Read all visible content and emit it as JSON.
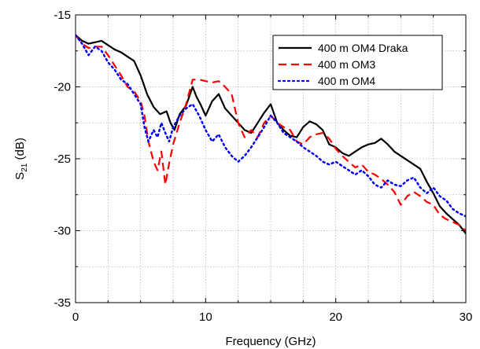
{
  "chart_data": {
    "type": "line",
    "title": "",
    "xlabel": "Frequency (GHz)",
    "ylabel": {
      "main": "S",
      "sub": "21",
      "rest": " (dB)"
    },
    "xlim": [
      0,
      30
    ],
    "ylim": [
      -35,
      -15
    ],
    "xticks": [
      0,
      10,
      20,
      30
    ],
    "yticks": [
      -35,
      -30,
      -25,
      -20,
      -15
    ],
    "grid": true,
    "legend": "top-right",
    "series": [
      {
        "name": "400 m OM4 Draka",
        "color": "#000000",
        "dash": "solid",
        "x": [
          0,
          0.5,
          1,
          1.5,
          2,
          2.5,
          3,
          3.5,
          4,
          4.5,
          5,
          5.5,
          6,
          6.5,
          7,
          7.3,
          7.6,
          8,
          8.5,
          9,
          9.3,
          9.6,
          10,
          10.5,
          11,
          11.5,
          12,
          12.5,
          13,
          13.5,
          14,
          14.5,
          15,
          15.5,
          16,
          16.5,
          17,
          17.5,
          18,
          18.5,
          19,
          19.5,
          20,
          20.5,
          21,
          21.5,
          22,
          22.5,
          23,
          23.5,
          24,
          24.5,
          25,
          25.5,
          26,
          26.5,
          27,
          27.5,
          28,
          28.5,
          29,
          29.5,
          30
        ],
        "y": [
          -16.4,
          -16.8,
          -17.0,
          -16.9,
          -16.8,
          -17.1,
          -17.4,
          -17.6,
          -17.9,
          -18.2,
          -19.2,
          -20.5,
          -21.4,
          -21.9,
          -21.7,
          -22.5,
          -23.0,
          -21.9,
          -21.3,
          -20.0,
          -20.7,
          -21.2,
          -22.0,
          -21.0,
          -20.5,
          -21.5,
          -22.0,
          -22.5,
          -23.0,
          -23.2,
          -22.5,
          -21.8,
          -21.2,
          -22.5,
          -23.0,
          -23.4,
          -23.5,
          -22.8,
          -22.4,
          -22.6,
          -23.0,
          -24.0,
          -24.2,
          -24.6,
          -24.8,
          -24.5,
          -24.2,
          -24.0,
          -23.9,
          -23.6,
          -24.0,
          -24.5,
          -24.8,
          -25.1,
          -25.4,
          -25.7,
          -26.6,
          -27.4,
          -28.3,
          -28.8,
          -29.2,
          -29.6,
          -30.2
        ]
      },
      {
        "name": "400 m OM3",
        "color": "#ff0000",
        "dash": "dashed",
        "x": [
          0,
          0.5,
          1,
          1.5,
          2,
          2.5,
          3,
          3.5,
          4,
          4.5,
          5,
          5.3,
          5.6,
          6,
          6.3,
          6.6,
          6.9,
          7.2,
          7.5,
          8,
          8.5,
          9,
          9.5,
          10,
          10.5,
          11,
          11.5,
          12,
          12.5,
          13,
          13.5,
          14,
          14.5,
          15,
          15.5,
          16,
          16.5,
          17,
          17.5,
          18,
          18.5,
          19,
          19.5,
          20,
          20.5,
          21,
          21.5,
          22,
          22.5,
          23,
          23.5,
          24,
          24.5,
          25,
          25.5,
          26,
          26.5,
          27,
          27.5,
          28,
          28.5,
          29,
          29.5,
          30
        ],
        "y": [
          -16.4,
          -17.0,
          -17.3,
          -17.2,
          -17.2,
          -17.8,
          -18.5,
          -19.2,
          -20.0,
          -20.3,
          -21.0,
          -22.0,
          -23.8,
          -25.2,
          -25.8,
          -24.5,
          -26.8,
          -25.3,
          -24.0,
          -22.5,
          -21.2,
          -19.5,
          -19.5,
          -19.6,
          -19.7,
          -19.6,
          -20.0,
          -20.5,
          -22.5,
          -23.5,
          -23.0,
          -23.5,
          -22.5,
          -22.0,
          -22.5,
          -22.8,
          -23.0,
          -23.8,
          -24.0,
          -23.5,
          -23.3,
          -23.2,
          -23.6,
          -24.3,
          -24.8,
          -25.2,
          -25.6,
          -25.4,
          -25.9,
          -26.1,
          -26.4,
          -26.8,
          -27.3,
          -28.2,
          -27.6,
          -27.3,
          -27.6,
          -28.0,
          -28.2,
          -28.9,
          -29.2,
          -29.4,
          -29.6,
          -30.0
        ]
      },
      {
        "name": "400 m OM4",
        "color": "#0000ff",
        "dash": "dotted",
        "x": [
          0,
          0.5,
          1,
          1.5,
          2,
          2.5,
          3,
          3.5,
          4,
          4.5,
          5,
          5.3,
          5.6,
          6,
          6.3,
          6.6,
          6.9,
          7.2,
          7.5,
          8,
          8.5,
          9,
          9.5,
          10,
          10.5,
          11,
          11.5,
          12,
          12.5,
          13,
          13.5,
          14,
          14.5,
          15,
          15.5,
          16,
          16.5,
          17,
          17.5,
          18,
          18.5,
          19,
          19.5,
          20,
          20.5,
          21,
          21.5,
          22,
          22.5,
          23,
          23.5,
          24,
          24.5,
          25,
          25.5,
          26,
          26.5,
          27,
          27.5,
          28,
          28.5,
          29,
          29.5,
          30
        ],
        "y": [
          -16.4,
          -17.0,
          -17.8,
          -17.2,
          -17.5,
          -18.3,
          -18.8,
          -19.5,
          -19.8,
          -20.5,
          -21.2,
          -22.8,
          -23.8,
          -23.0,
          -23.5,
          -22.5,
          -23.2,
          -23.8,
          -22.8,
          -22.0,
          -21.5,
          -21.2,
          -22.0,
          -23.0,
          -23.8,
          -23.3,
          -24.2,
          -24.8,
          -25.2,
          -24.8,
          -24.2,
          -23.5,
          -22.8,
          -22.0,
          -22.5,
          -23.2,
          -23.5,
          -23.8,
          -24.2,
          -24.5,
          -24.8,
          -25.2,
          -25.4,
          -25.2,
          -25.5,
          -25.8,
          -26.1,
          -25.8,
          -26.2,
          -26.8,
          -27.0,
          -26.5,
          -26.8,
          -26.9,
          -26.5,
          -26.3,
          -27.0,
          -27.4,
          -27.0,
          -27.6,
          -27.9,
          -28.5,
          -28.8,
          -29.0
        ]
      }
    ]
  }
}
